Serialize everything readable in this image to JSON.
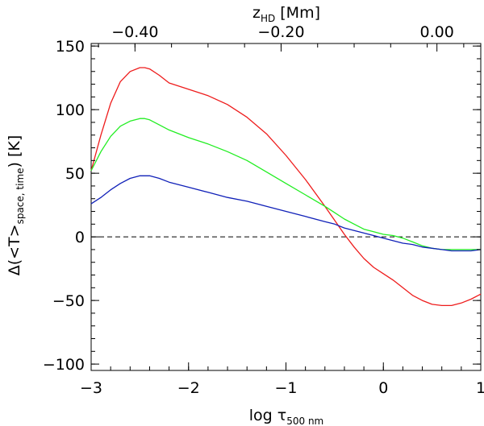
{
  "chart_data": {
    "type": "line",
    "xlabel": "log τ",
    "xlabel_sub": "500 nm",
    "ylabel": "Δ(<T>",
    "ylabel_sub": "space, time",
    "ylabel_tail": ") [K]",
    "top_xlabel": "z",
    "top_xlabel_sub": "HD",
    "top_xlabel_tail": " [Mm]",
    "xlim": [
      -3,
      1
    ],
    "ylim": [
      -105,
      152
    ],
    "grid": false,
    "x_ticks": [
      {
        "value": -3,
        "label": "−3"
      },
      {
        "value": -2,
        "label": "−2"
      },
      {
        "value": -1,
        "label": "−1"
      },
      {
        "value": 0,
        "label": "0"
      },
      {
        "value": 1,
        "label": "1"
      }
    ],
    "y_ticks": [
      {
        "value": -100,
        "label": "−100"
      },
      {
        "value": -50,
        "label": "−50"
      },
      {
        "value": 0,
        "label": "0"
      },
      {
        "value": 50,
        "label": "50"
      },
      {
        "value": 100,
        "label": "100"
      },
      {
        "value": 150,
        "label": "150"
      }
    ],
    "top_ticks": [
      {
        "value": -2.55,
        "label": "−0.40"
      },
      {
        "value": -1.05,
        "label": "−0.20"
      },
      {
        "value": 0.55,
        "label": "0.00"
      }
    ],
    "reference_line": {
      "y": 0,
      "style": "dashed",
      "color": "#000000"
    },
    "series": [
      {
        "name": "red",
        "color": "#ee1c1c",
        "x": [
          -3.0,
          -2.9,
          -2.8,
          -2.7,
          -2.6,
          -2.5,
          -2.45,
          -2.4,
          -2.3,
          -2.2,
          -2.0,
          -1.8,
          -1.6,
          -1.4,
          -1.2,
          -1.0,
          -0.8,
          -0.6,
          -0.5,
          -0.4,
          -0.3,
          -0.2,
          -0.1,
          0.0,
          0.1,
          0.2,
          0.3,
          0.4,
          0.5,
          0.6,
          0.7,
          0.8,
          0.9,
          1.0
        ],
        "values": [
          52,
          80,
          105,
          122,
          130,
          133,
          133,
          132,
          127,
          121,
          116,
          111,
          104,
          94,
          81,
          64,
          45,
          24,
          13,
          2,
          -8,
          -17,
          -24,
          -29,
          -34,
          -40,
          -46,
          -50,
          -53,
          -54,
          -54,
          -52,
          -49,
          -45
        ]
      },
      {
        "name": "green",
        "color": "#22ee22",
        "x": [
          -3.0,
          -2.9,
          -2.8,
          -2.7,
          -2.6,
          -2.5,
          -2.45,
          -2.4,
          -2.3,
          -2.2,
          -2.0,
          -1.8,
          -1.6,
          -1.4,
          -1.2,
          -1.0,
          -0.8,
          -0.6,
          -0.5,
          -0.4,
          -0.3,
          -0.2,
          -0.1,
          0.0,
          0.1,
          0.2,
          0.3,
          0.4,
          0.5,
          0.6,
          0.7,
          0.8,
          0.9,
          1.0
        ],
        "values": [
          52,
          67,
          79,
          87,
          91,
          93,
          93,
          92,
          88,
          84,
          78,
          73,
          67,
          60,
          51,
          42,
          33,
          24,
          19,
          14,
          10,
          6,
          4,
          2,
          1,
          -1,
          -4,
          -7,
          -9,
          -10,
          -10,
          -10,
          -10,
          -10
        ]
      },
      {
        "name": "blue",
        "color": "#1020b8",
        "x": [
          -3.0,
          -2.9,
          -2.8,
          -2.7,
          -2.6,
          -2.5,
          -2.45,
          -2.4,
          -2.3,
          -2.2,
          -2.0,
          -1.8,
          -1.6,
          -1.4,
          -1.2,
          -1.0,
          -0.8,
          -0.6,
          -0.5,
          -0.4,
          -0.3,
          -0.2,
          -0.1,
          0.0,
          0.1,
          0.2,
          0.3,
          0.4,
          0.5,
          0.6,
          0.7,
          0.8,
          0.9,
          1.0
        ],
        "values": [
          26,
          31,
          37,
          42,
          46,
          48,
          48,
          48,
          46,
          43,
          39,
          35,
          31,
          28,
          24,
          20,
          16,
          12,
          10,
          7,
          5,
          3,
          1,
          -1,
          -3,
          -5,
          -6,
          -8,
          -9,
          -10,
          -11,
          -11,
          -11,
          -10
        ]
      }
    ]
  }
}
